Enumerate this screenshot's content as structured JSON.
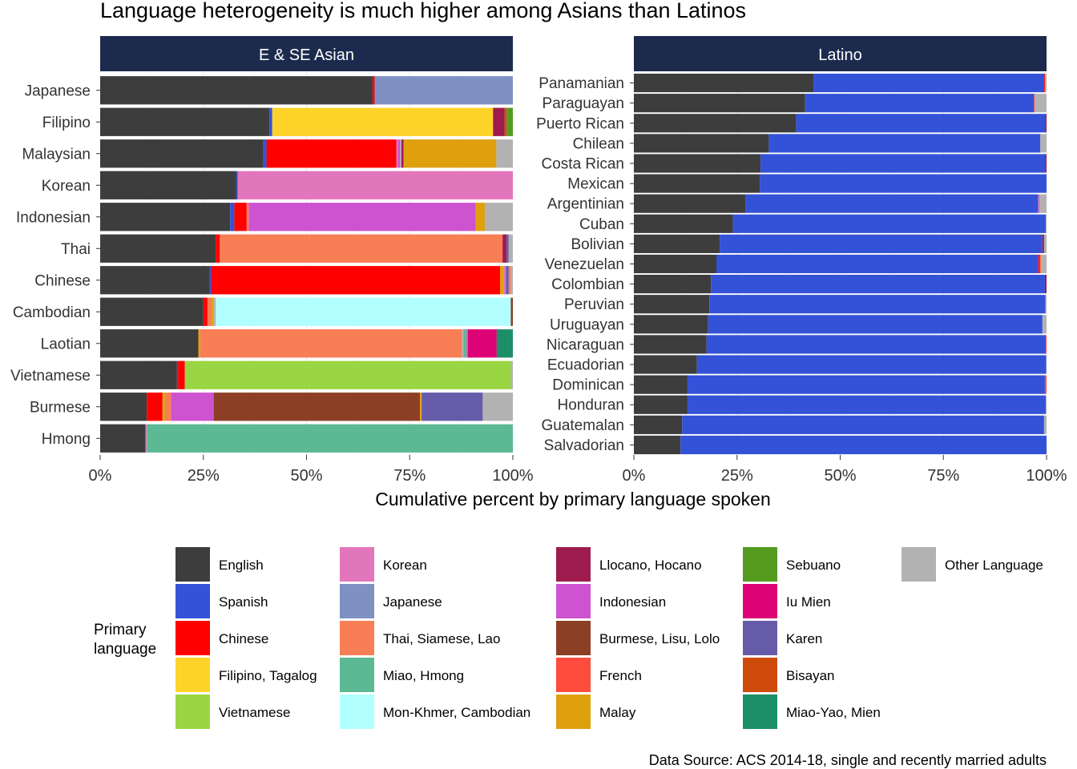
{
  "chart_data": {
    "type": "bar",
    "orientation": "horizontal",
    "stacked": true,
    "title": "Language heterogeneity is much higher among Asians than Latinos",
    "xlabel": "Cumulative percent by primary language spoken",
    "x_ticks": [
      "0%",
      "25%",
      "50%",
      "75%",
      "100%"
    ],
    "xlim": [
      0,
      100
    ],
    "caption": "Data Source: ACS 2014-18, single and recently married adults",
    "legend": {
      "title": "Primary language",
      "title_lines": [
        "Primary",
        "language"
      ],
      "placement": "bottom",
      "items": [
        {
          "label": "English",
          "color": "#3d3d3d"
        },
        {
          "label": "Spanish",
          "color": "#3452d8"
        },
        {
          "label": "Chinese",
          "color": "#ff0000"
        },
        {
          "label": "Filipino, Tagalog",
          "color": "#fdd32a"
        },
        {
          "label": "Vietnamese",
          "color": "#9ad543"
        },
        {
          "label": "Korean",
          "color": "#e276bb"
        },
        {
          "label": "Japanese",
          "color": "#7f91c2"
        },
        {
          "label": "Thai, Siamese, Lao",
          "color": "#f87e55"
        },
        {
          "label": "Miao, Hmong",
          "color": "#5bb993"
        },
        {
          "label": "Mon-Khmer, Cambodian",
          "color": "#b2ffff"
        },
        {
          "label": "Llocano, Hocano",
          "color": "#9e1b4e"
        },
        {
          "label": "Indonesian",
          "color": "#ce53d0"
        },
        {
          "label": "Burmese, Lisu, Lolo",
          "color": "#8d3f25"
        },
        {
          "label": "French",
          "color": "#ff4c3c"
        },
        {
          "label": "Malay",
          "color": "#dfa00e"
        },
        {
          "label": "Sebuano",
          "color": "#549b1f"
        },
        {
          "label": "Iu Mien",
          "color": "#dd0377"
        },
        {
          "label": "Karen",
          "color": "#665ba9"
        },
        {
          "label": "Bisayan",
          "color": "#cf4b0c"
        },
        {
          "label": "Miao-Yao, Mien",
          "color": "#1c8e68"
        },
        {
          "label": "Other Language",
          "color": "#b2b2b2"
        }
      ]
    },
    "panels": [
      {
        "strip": "E & SE Asian",
        "categories": [
          {
            "name": "Japanese",
            "segments": [
              [
                "English",
                66
              ],
              [
                "Chinese",
                0.5
              ],
              [
                "Japanese",
                33.5
              ]
            ]
          },
          {
            "name": "Filipino",
            "segments": [
              [
                "English",
                41
              ],
              [
                "Spanish",
                0.7
              ],
              [
                "Filipino, Tagalog",
                53.5
              ],
              [
                "Llocano, Hocano",
                2.8
              ],
              [
                "Bisayan",
                0.5
              ],
              [
                "Sebuano",
                1.5
              ]
            ]
          },
          {
            "name": "Malaysian",
            "segments": [
              [
                "English",
                39.5
              ],
              [
                "Spanish",
                0.8
              ],
              [
                "Chinese",
                31.5
              ],
              [
                "Korean",
                0.3
              ],
              [
                "Indonesian",
                0.6
              ],
              [
                "Other Language",
                0.3
              ],
              [
                "Llocano, Hocano",
                0.5
              ],
              [
                "Malay",
                22.5
              ],
              [
                "Other Language",
                4
              ]
            ]
          },
          {
            "name": "Korean",
            "segments": [
              [
                "English",
                33
              ],
              [
                "Spanish",
                0.3
              ],
              [
                "Korean",
                66.7
              ]
            ]
          },
          {
            "name": "Indonesian",
            "segments": [
              [
                "English",
                31.5
              ],
              [
                "Spanish",
                1
              ],
              [
                "Chinese",
                3
              ],
              [
                "Thai, Siamese, Lao",
                0.5
              ],
              [
                "Indonesian",
                55
              ],
              [
                "Malay",
                2.2
              ],
              [
                "Other Language",
                6.8
              ]
            ]
          },
          {
            "name": "Thai",
            "segments": [
              [
                "English",
                28
              ],
              [
                "Chinese",
                1
              ],
              [
                "Thai, Siamese, Lao",
                68.5
              ],
              [
                "Llocano, Hocano",
                1
              ],
              [
                "Karen",
                0.5
              ],
              [
                "Other Language",
                1
              ]
            ]
          },
          {
            "name": "Chinese",
            "segments": [
              [
                "English",
                26.5
              ],
              [
                "Spanish",
                0.4
              ],
              [
                "Chinese",
                70
              ],
              [
                "Malay",
                0.8
              ],
              [
                "Korean",
                0.6
              ],
              [
                "Karen",
                0.7
              ],
              [
                "Thai, Siamese, Lao",
                0.5
              ],
              [
                "Other Language",
                0.5
              ]
            ]
          },
          {
            "name": "Cambodian",
            "segments": [
              [
                "English",
                25
              ],
              [
                "Chinese",
                1
              ],
              [
                "Thai, Siamese, Lao",
                1
              ],
              [
                "Malay",
                0.5
              ],
              [
                "Other Language",
                0.5
              ],
              [
                "Mon-Khmer, Cambodian",
                71.5
              ],
              [
                "Burmese, Lisu, Lolo",
                0.5
              ]
            ]
          },
          {
            "name": "Laotian",
            "segments": [
              [
                "English",
                23.8
              ],
              [
                "Malay",
                0.4
              ],
              [
                "Thai, Siamese, Lao",
                63.5
              ],
              [
                "Other Language",
                0.3
              ],
              [
                "Miao, Hmong",
                0.8
              ],
              [
                "Indonesian",
                0.3
              ],
              [
                "Iu Mien",
                7
              ],
              [
                "Miao-Yao, Mien",
                3.9
              ]
            ]
          },
          {
            "name": "Vietnamese",
            "segments": [
              [
                "English",
                18.6
              ],
              [
                "Llocano, Hocano",
                0.3
              ],
              [
                "Chinese",
                1.6
              ],
              [
                "Vietnamese",
                79
              ],
              [
                "Other Language",
                0.5
              ]
            ]
          },
          {
            "name": "Burmese",
            "segments": [
              [
                "English",
                11.3
              ],
              [
                "Chinese",
                3.8
              ],
              [
                "Malay",
                0.6
              ],
              [
                "Thai, Siamese, Lao",
                1.5
              ],
              [
                "Indonesian",
                10.3
              ],
              [
                "Burmese, Lisu, Lolo",
                50
              ],
              [
                "Malay",
                0.4
              ],
              [
                "Karen",
                14.8
              ],
              [
                "Other Language",
                7.3
              ]
            ]
          },
          {
            "name": "Hmong",
            "segments": [
              [
                "English",
                11
              ],
              [
                "Korean",
                0.3
              ],
              [
                "Miao, Hmong",
                88.7
              ]
            ]
          }
        ]
      },
      {
        "strip": "Latino",
        "categories": [
          {
            "name": "Panamanian",
            "segments": [
              [
                "English",
                43.5
              ],
              [
                "Spanish",
                55.8
              ],
              [
                "Chinese",
                0.3
              ],
              [
                "Other Language",
                0.4
              ]
            ]
          },
          {
            "name": "Paraguayan",
            "segments": [
              [
                "English",
                41.5
              ],
              [
                "Spanish",
                55.3
              ],
              [
                "Chinese",
                0.2
              ],
              [
                "Other Language",
                3
              ]
            ]
          },
          {
            "name": "Puerto Rican",
            "segments": [
              [
                "English",
                39.3
              ],
              [
                "Spanish",
                60.4
              ],
              [
                "Llocano, Hocano",
                0.3
              ]
            ]
          },
          {
            "name": "Chilean",
            "segments": [
              [
                "English",
                32.7
              ],
              [
                "Spanish",
                65.8
              ],
              [
                "Other Language",
                1.5
              ]
            ]
          },
          {
            "name": "Costa Rican",
            "segments": [
              [
                "English",
                30.7
              ],
              [
                "Spanish",
                69
              ],
              [
                "Llocano, Hocano",
                0.3
              ]
            ]
          },
          {
            "name": "Mexican",
            "segments": [
              [
                "English",
                30.5
              ],
              [
                "Spanish",
                69.5
              ]
            ]
          },
          {
            "name": "Argentinian",
            "segments": [
              [
                "English",
                27
              ],
              [
                "Spanish",
                71
              ],
              [
                "Korean",
                0.5
              ],
              [
                "Other Language",
                1.5
              ]
            ]
          },
          {
            "name": "Cuban",
            "segments": [
              [
                "English",
                24
              ],
              [
                "Spanish",
                75.8
              ],
              [
                "Other Language",
                0.2
              ]
            ]
          },
          {
            "name": "Bolivian",
            "segments": [
              [
                "English",
                20.8
              ],
              [
                "Spanish",
                78.2
              ],
              [
                "Llocano, Hocano",
                0.4
              ],
              [
                "Other Language",
                0.6
              ]
            ]
          },
          {
            "name": "Venezuelan",
            "segments": [
              [
                "English",
                20
              ],
              [
                "Spanish",
                78
              ],
              [
                "Chinese",
                0.4
              ],
              [
                "Thai, Siamese, Lao",
                0.4
              ],
              [
                "Other Language",
                1.2
              ]
            ]
          },
          {
            "name": "Colombian",
            "segments": [
              [
                "English",
                18.7
              ],
              [
                "Spanish",
                80.9
              ],
              [
                "Llocano, Hocano",
                0.4
              ]
            ]
          },
          {
            "name": "Peruvian",
            "segments": [
              [
                "English",
                18.3
              ],
              [
                "Spanish",
                81.4
              ],
              [
                "Other Language",
                0.3
              ]
            ]
          },
          {
            "name": "Uruguayan",
            "segments": [
              [
                "English",
                18
              ],
              [
                "Spanish",
                81
              ],
              [
                "Other Language",
                1
              ]
            ]
          },
          {
            "name": "Nicaraguan",
            "segments": [
              [
                "English",
                17.6
              ],
              [
                "Spanish",
                82.2
              ],
              [
                "French",
                0.2
              ]
            ]
          },
          {
            "name": "Ecuadorian",
            "segments": [
              [
                "English",
                15.3
              ],
              [
                "Spanish",
                84.6
              ],
              [
                "Other Language",
                0.1
              ]
            ]
          },
          {
            "name": "Dominican",
            "segments": [
              [
                "English",
                13
              ],
              [
                "Spanish",
                86.6
              ],
              [
                "French",
                0.4
              ]
            ]
          },
          {
            "name": "Honduran",
            "segments": [
              [
                "English",
                13
              ],
              [
                "Spanish",
                86.8
              ],
              [
                "Other Language",
                0.2
              ]
            ]
          },
          {
            "name": "Guatemalan",
            "segments": [
              [
                "English",
                11.7
              ],
              [
                "Spanish",
                87.7
              ],
              [
                "Other Language",
                0.6
              ]
            ]
          },
          {
            "name": "Salvadorian",
            "segments": [
              [
                "English",
                11.3
              ],
              [
                "Spanish",
                88.7
              ]
            ]
          }
        ]
      }
    ]
  }
}
